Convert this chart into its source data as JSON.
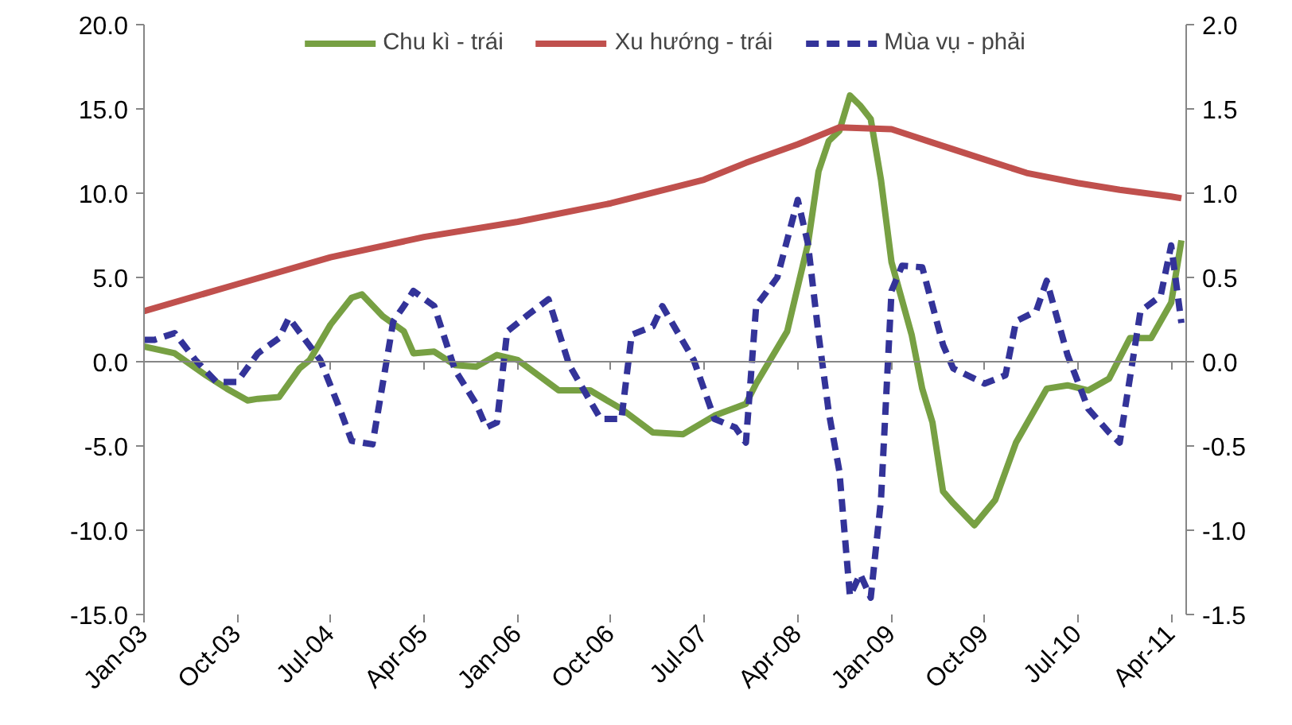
{
  "chart_data": {
    "type": "line",
    "legend": "top",
    "grid": false,
    "xlim": [
      "2003-01",
      "2011-05-15"
    ],
    "xticks": [
      {
        "value": "2003-01",
        "label": "Jan-03"
      },
      {
        "value": "2003-10",
        "label": "Oct-03"
      },
      {
        "value": "2004-07",
        "label": "Jul-04"
      },
      {
        "value": "2005-04",
        "label": "Apr-05"
      },
      {
        "value": "2006-01",
        "label": "Jan-06"
      },
      {
        "value": "2006-10",
        "label": "Oct-06"
      },
      {
        "value": "2007-07",
        "label": "Jul-07"
      },
      {
        "value": "2008-04",
        "label": "Apr-08"
      },
      {
        "value": "2009-01",
        "label": "Jan-09"
      },
      {
        "value": "2009-10",
        "label": "Oct-09"
      },
      {
        "value": "2010-07",
        "label": "Jul-10"
      },
      {
        "value": "2011-04",
        "label": "Apr-11"
      }
    ],
    "ylim": [
      -15,
      20
    ],
    "yticks": [
      {
        "value": -15,
        "label": "-15.0"
      },
      {
        "value": -10,
        "label": "-10.0"
      },
      {
        "value": -5,
        "label": "-5.0"
      },
      {
        "value": 0,
        "label": "0.0"
      },
      {
        "value": 5,
        "label": "5.0"
      },
      {
        "value": 10,
        "label": "10.0"
      },
      {
        "value": 15,
        "label": "15.0"
      },
      {
        "value": 20,
        "label": "20.0"
      }
    ],
    "ref_lines": [
      {
        "axis": "y",
        "value": 0,
        "color": "#868686"
      }
    ],
    "y2lim": [
      -1.5,
      2.0
    ],
    "y2ticks": [
      {
        "value": -1.5,
        "label": "-1.5"
      },
      {
        "value": -1,
        "label": "-1.0"
      },
      {
        "value": -0.5,
        "label": "-0.5"
      },
      {
        "value": 0,
        "label": "0.0"
      },
      {
        "value": 0.5,
        "label": "0.5"
      },
      {
        "value": 1,
        "label": "1.0"
      },
      {
        "value": 1.5,
        "label": "1.5"
      },
      {
        "value": 2,
        "label": "2.0"
      }
    ],
    "series": [
      {
        "name": "Chu kì - trái",
        "color": "#77a043",
        "line_style": "solid",
        "x": [
          "2003-01",
          "2003-04",
          "2003-07",
          "2003-09",
          "2003-11",
          "2003-12",
          "2004-02",
          "2004-04",
          "2004-05",
          "2004-07",
          "2004-09",
          "2004-10",
          "2004-12",
          "2005-02",
          "2005-03",
          "2005-05",
          "2005-07",
          "2005-09",
          "2005-11",
          "2006-01",
          "2006-05",
          "2006-08",
          "2006-11",
          "2007-02",
          "2007-05",
          "2007-08",
          "2007-11",
          "2007-12",
          "2008-03",
          "2008-05",
          "2008-06",
          "2008-07",
          "2008-08",
          "2008-09",
          "2008-10",
          "2008-11",
          "2008-12",
          "2009-01",
          "2009-03",
          "2009-04",
          "2009-05",
          "2009-06",
          "2009-07",
          "2009-09",
          "2009-11",
          "2010-01",
          "2010-04",
          "2010-06",
          "2010-08",
          "2010-10",
          "2010-12",
          "2011-02",
          "2011-04",
          "2011-05"
        ],
        "values": [
          0.9,
          0.5,
          -0.8,
          -1.6,
          -2.3,
          -2.2,
          -2.1,
          -0.4,
          0.1,
          2.2,
          3.8,
          4.0,
          2.7,
          1.8,
          0.5,
          0.6,
          -0.2,
          -0.3,
          0.4,
          0.1,
          -1.7,
          -1.7,
          -2.8,
          -4.2,
          -4.3,
          -3.2,
          -2.5,
          -1.3,
          1.8,
          7.0,
          11.3,
          13.1,
          13.7,
          15.8,
          15.2,
          14.4,
          10.8,
          5.9,
          1.6,
          -1.6,
          -3.6,
          -7.7,
          -8.4,
          -9.7,
          -8.2,
          -4.8,
          -1.6,
          -1.4,
          -1.7,
          -1.0,
          1.4,
          1.4,
          3.5,
          7.2
        ]
      },
      {
        "name": "Xu hướng - trái",
        "color": "#c0504d",
        "line_style": "solid",
        "x": [
          "2003-01",
          "2003-10",
          "2004-07",
          "2005-04",
          "2006-01",
          "2006-10",
          "2007-07",
          "2007-11",
          "2008-04",
          "2008-08",
          "2009-01",
          "2009-05",
          "2009-10",
          "2010-02",
          "2010-07",
          "2010-11",
          "2011-04",
          "2011-05"
        ],
        "values": [
          3.0,
          4.6,
          6.2,
          7.4,
          8.3,
          9.4,
          10.8,
          11.8,
          12.9,
          13.9,
          13.8,
          13.0,
          12.0,
          11.2,
          10.6,
          10.2,
          9.8,
          9.7
        ]
      },
      {
        "name": "Mùa vụ - phải",
        "color": "#333399",
        "axis": "y2",
        "line_style": "dashed",
        "x": [
          "2003-01",
          "2003-02",
          "2003-04",
          "2003-06",
          "2003-08",
          "2003-10",
          "2003-12",
          "2004-02",
          "2004-03",
          "2004-06",
          "2004-08",
          "2004-09",
          "2004-11",
          "2005-01",
          "2005-02",
          "2005-03",
          "2005-05",
          "2005-07",
          "2005-09",
          "2005-10",
          "2005-11",
          "2005-12",
          "2006-02",
          "2006-04",
          "2006-06",
          "2006-09",
          "2006-11",
          "2006-12",
          "2007-02",
          "2007-03",
          "2007-06",
          "2007-08",
          "2007-10",
          "2007-11",
          "2007-12",
          "2008-02",
          "2008-04",
          "2008-05",
          "2008-06",
          "2008-07",
          "2008-08",
          "2008-09",
          "2008-10",
          "2008-11",
          "2008-12",
          "2009-01",
          "2009-02",
          "2009-04",
          "2009-06",
          "2009-07",
          "2009-10",
          "2009-12",
          "2010-01",
          "2010-03",
          "2010-04",
          "2010-06",
          "2010-08",
          "2010-10",
          "2010-11",
          "2011-01",
          "2011-03",
          "2011-04",
          "2011-05"
        ],
        "values": [
          0.13,
          0.13,
          0.17,
          0.01,
          -0.12,
          -0.12,
          0.05,
          0.14,
          0.26,
          0.01,
          -0.3,
          -0.47,
          -0.49,
          0.24,
          0.33,
          0.42,
          0.33,
          -0.05,
          -0.25,
          -0.39,
          -0.36,
          0.18,
          0.28,
          0.37,
          -0.02,
          -0.34,
          -0.34,
          0.16,
          0.21,
          0.33,
          0.01,
          -0.34,
          -0.39,
          -0.48,
          0.33,
          0.5,
          0.96,
          0.7,
          0.16,
          -0.3,
          -0.65,
          -1.39,
          -1.26,
          -1.4,
          -0.82,
          0.42,
          0.57,
          0.56,
          0.1,
          -0.04,
          -0.13,
          -0.08,
          0.24,
          0.3,
          0.48,
          0.04,
          -0.28,
          -0.42,
          -0.48,
          0.3,
          0.39,
          0.69,
          0.23
        ]
      }
    ]
  }
}
